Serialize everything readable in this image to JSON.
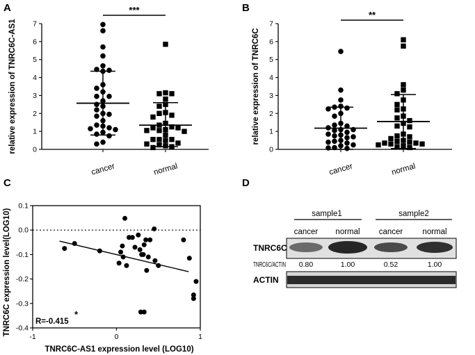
{
  "panels": {
    "A": "A",
    "B": "B",
    "C": "C",
    "D": "D"
  },
  "chart_data": [
    {
      "id": "A",
      "type": "scatter",
      "title": "",
      "xlabel": "",
      "ylabel": "relative expression of TNRC6C-AS1",
      "ylim": [
        0,
        7
      ],
      "yticks": [
        "0",
        "1",
        "2",
        "3",
        "4",
        "5",
        "6",
        "7"
      ],
      "categories": [
        "cancer",
        "normal"
      ],
      "significance": "***",
      "series": [
        {
          "name": "cancer",
          "marker": "circle",
          "mean": 2.57,
          "sd_upper": 4.35,
          "sd_lower": 0.8,
          "values": [
            6.95,
            6.6,
            5.7,
            5.2,
            4.65,
            4.45,
            4.4,
            4.35,
            3.6,
            3.4,
            3.2,
            2.95,
            2.95,
            2.7,
            2.5,
            2.4,
            2.2,
            2.0,
            1.95,
            1.85,
            1.6,
            1.35,
            1.3,
            1.2,
            1.15,
            1.1,
            0.95,
            0.85,
            0.75,
            0.4,
            0.3
          ]
        },
        {
          "name": "normal",
          "marker": "square",
          "mean": 1.35,
          "sd_upper": 2.6,
          "sd_lower": 0.15,
          "values": [
            5.85,
            3.15,
            3.1,
            3.1,
            2.8,
            2.5,
            2.4,
            2.05,
            2.0,
            1.9,
            1.8,
            1.45,
            1.35,
            1.25,
            1.2,
            1.2,
            1.1,
            1.05,
            1.05,
            1.0,
            0.8,
            0.55,
            0.55,
            0.55,
            0.5,
            0.35,
            0.3,
            0.25,
            0.2,
            0.15,
            0.1
          ]
        }
      ]
    },
    {
      "id": "B",
      "type": "scatter",
      "title": "",
      "xlabel": "",
      "ylabel": "relative expression of TNRC6C",
      "ylim": [
        0,
        7
      ],
      "yticks": [
        "0",
        "1",
        "2",
        "3",
        "4",
        "5",
        "6",
        "7"
      ],
      "categories": [
        "cancer",
        "normal"
      ],
      "significance": "**",
      "series": [
        {
          "name": "cancer",
          "marker": "circle",
          "mean": 1.18,
          "sd_upper": 2.35,
          "sd_lower": 0.0,
          "values": [
            5.45,
            3.3,
            2.75,
            2.4,
            2.35,
            2.3,
            2.25,
            2.0,
            1.85,
            1.45,
            1.35,
            1.3,
            1.2,
            1.1,
            1.1,
            1.05,
            0.95,
            0.85,
            0.8,
            0.75,
            0.7,
            0.65,
            0.5,
            0.45,
            0.4,
            0.35,
            0.25,
            0.2,
            0.1,
            0.08,
            0.05
          ]
        },
        {
          "name": "normal",
          "marker": "square",
          "mean": 1.55,
          "sd_upper": 3.05,
          "sd_lower": 0.05,
          "values": [
            6.1,
            5.75,
            3.6,
            3.3,
            3.1,
            2.75,
            2.5,
            2.25,
            2.2,
            1.85,
            1.75,
            1.6,
            1.45,
            1.3,
            1.25,
            0.85,
            0.75,
            0.7,
            0.6,
            0.5,
            0.45,
            0.4,
            0.35,
            0.35,
            0.3,
            0.3,
            0.25,
            0.2,
            0.15,
            0.1
          ]
        }
      ]
    },
    {
      "id": "C",
      "type": "scatter",
      "title": "",
      "xlabel": "TNRC6C-AS1 expression level (LOG10)",
      "ylabel": "TNRC6C expression level(LOG10)",
      "xlim": [
        -1,
        1
      ],
      "ylim": [
        -0.4,
        0.1
      ],
      "xticks": [
        "-1",
        "0",
        "1"
      ],
      "yticks": [
        "0.1",
        "0.0",
        "-0.1",
        "-0.2",
        "-0.3",
        "-0.4"
      ],
      "reference_line_y": 0.0,
      "annotation": "R=-0.415",
      "annotation_mark": "*",
      "regression": {
        "x": [
          -0.68,
          0.86
        ],
        "y": [
          -0.045,
          -0.17
        ]
      },
      "points": [
        [
          -0.62,
          -0.075
        ],
        [
          -0.5,
          -0.055
        ],
        [
          -0.2,
          -0.085
        ],
        [
          0.07,
          -0.065
        ],
        [
          0.05,
          -0.09
        ],
        [
          0.08,
          -0.11
        ],
        [
          0.03,
          -0.135
        ],
        [
          0.12,
          -0.145
        ],
        [
          0.1,
          0.048
        ],
        [
          0.15,
          -0.03
        ],
        [
          0.19,
          -0.03
        ],
        [
          0.22,
          -0.07
        ],
        [
          0.26,
          -0.02
        ],
        [
          0.28,
          -0.08
        ],
        [
          0.3,
          -0.1
        ],
        [
          0.32,
          -0.1
        ],
        [
          0.33,
          -0.06
        ],
        [
          0.35,
          -0.04
        ],
        [
          0.38,
          -0.11
        ],
        [
          0.4,
          -0.04
        ],
        [
          0.45,
          0.005
        ],
        [
          0.46,
          -0.125
        ],
        [
          0.5,
          -0.145
        ],
        [
          0.36,
          -0.165
        ],
        [
          0.29,
          -0.335
        ],
        [
          0.33,
          -0.335
        ],
        [
          0.8,
          -0.04
        ],
        [
          0.87,
          -0.115
        ],
        [
          0.95,
          -0.21
        ],
        [
          0.92,
          -0.265
        ],
        [
          0.92,
          -0.28
        ]
      ]
    }
  ],
  "western_blot": {
    "groups": [
      "sample1",
      "sample2"
    ],
    "lanes": [
      "cancer",
      "normal",
      "cancer",
      "normal"
    ],
    "proteins": [
      "TNRC6C",
      "ACTIN"
    ],
    "ratio_label": "TNRC6C/ACTIN",
    "ratios": [
      "0.80",
      "1.00",
      "0.52",
      "1.00"
    ]
  }
}
